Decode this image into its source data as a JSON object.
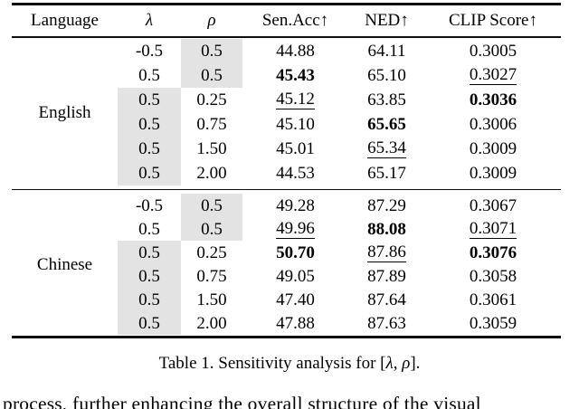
{
  "table": {
    "highlight_color": "#e3e3e3",
    "rule_color": "#0d0d0d",
    "columns": [
      "Language",
      "λ",
      "ρ",
      "Sen.Acc↑",
      "NED↑",
      "CLIP Score↑"
    ],
    "sections": [
      {
        "language": "English",
        "rows": [
          {
            "lambda": {
              "t": "-0.5"
            },
            "rho": {
              "t": "0.5",
              "hl": true
            },
            "sen": {
              "t": "44.88"
            },
            "ned": {
              "t": "64.11"
            },
            "clip": {
              "t": "0.3005"
            }
          },
          {
            "lambda": {
              "t": "0.5"
            },
            "rho": {
              "t": "0.5",
              "hl": true
            },
            "sen": {
              "t": "45.43",
              "b": true
            },
            "ned": {
              "t": "65.10"
            },
            "clip": {
              "t": "0.3027",
              "u": true
            }
          },
          {
            "lambda": {
              "t": "0.5",
              "hl": true
            },
            "rho": {
              "t": "0.25"
            },
            "sen": {
              "t": "45.12",
              "u": true
            },
            "ned": {
              "t": "63.85"
            },
            "clip": {
              "t": "0.3036",
              "b": true
            }
          },
          {
            "lambda": {
              "t": "0.5",
              "hl": true
            },
            "rho": {
              "t": "0.75"
            },
            "sen": {
              "t": "45.10"
            },
            "ned": {
              "t": "65.65",
              "b": true
            },
            "clip": {
              "t": "0.3006"
            }
          },
          {
            "lambda": {
              "t": "0.5",
              "hl": true
            },
            "rho": {
              "t": "1.50"
            },
            "sen": {
              "t": "45.01"
            },
            "ned": {
              "t": "65.34",
              "u": true
            },
            "clip": {
              "t": "0.3009"
            }
          },
          {
            "lambda": {
              "t": "0.5",
              "hl": true
            },
            "rho": {
              "t": "2.00"
            },
            "sen": {
              "t": "44.53"
            },
            "ned": {
              "t": "65.17"
            },
            "clip": {
              "t": "0.3009"
            }
          }
        ]
      },
      {
        "language": "Chinese",
        "rows": [
          {
            "lambda": {
              "t": "-0.5"
            },
            "rho": {
              "t": "0.5",
              "hl": true
            },
            "sen": {
              "t": "49.28"
            },
            "ned": {
              "t": "87.29"
            },
            "clip": {
              "t": "0.3067"
            }
          },
          {
            "lambda": {
              "t": "0.5"
            },
            "rho": {
              "t": "0.5",
              "hl": true
            },
            "sen": {
              "t": "49.96",
              "u": true
            },
            "ned": {
              "t": "88.08",
              "b": true
            },
            "clip": {
              "t": "0.3071",
              "u": true
            }
          },
          {
            "lambda": {
              "t": "0.5",
              "hl": true
            },
            "rho": {
              "t": "0.25"
            },
            "sen": {
              "t": "50.70",
              "b": true
            },
            "ned": {
              "t": "87.86",
              "u": true
            },
            "clip": {
              "t": "0.3076",
              "b": true
            }
          },
          {
            "lambda": {
              "t": "0.5",
              "hl": true
            },
            "rho": {
              "t": "0.75"
            },
            "sen": {
              "t": "49.05"
            },
            "ned": {
              "t": "87.89"
            },
            "clip": {
              "t": "0.3058"
            }
          },
          {
            "lambda": {
              "t": "0.5",
              "hl": true
            },
            "rho": {
              "t": "1.50"
            },
            "sen": {
              "t": "47.40"
            },
            "ned": {
              "t": "87.64"
            },
            "clip": {
              "t": "0.3061"
            }
          },
          {
            "lambda": {
              "t": "0.5",
              "hl": true
            },
            "rho": {
              "t": "2.00"
            },
            "sen": {
              "t": "47.88"
            },
            "ned": {
              "t": "87.63"
            },
            "clip": {
              "t": "0.3059"
            }
          }
        ]
      }
    ]
  },
  "caption": {
    "prefix": "Table 1. Sensitivity analysis for [",
    "math": "λ, ρ",
    "suffix": "]."
  },
  "body_text": "process, further enhancing the overall structure of the visual"
}
